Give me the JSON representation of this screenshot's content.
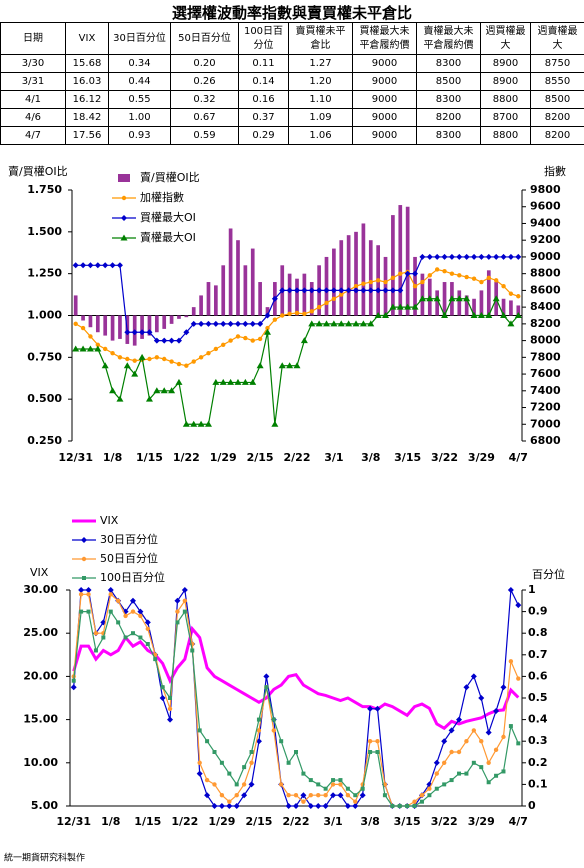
{
  "title": "選擇權波動率指數與賣買權未平倉比",
  "table": {
    "header": [
      "日期",
      "VIX",
      "30日百分位",
      "50日百分位",
      "100日百分位",
      "賣買權未平倉比",
      "買權最大未平倉履約價",
      "賣權最大未平倉履約價",
      "週買權最大",
      "週賣權最大"
    ],
    "rows": [
      [
        "3/30",
        "15.68",
        "0.34",
        "0.20",
        "0.11",
        "1.27",
        "9000",
        "8300",
        "8900",
        "8750"
      ],
      [
        "3/31",
        "16.03",
        "0.44",
        "0.26",
        "0.14",
        "1.20",
        "9000",
        "8500",
        "8900",
        "8550"
      ],
      [
        "4/1",
        "16.12",
        "0.55",
        "0.32",
        "0.16",
        "1.10",
        "9000",
        "8300",
        "8800",
        "8500"
      ],
      [
        "4/6",
        "18.42",
        "1.00",
        "0.67",
        "0.37",
        "1.09",
        "9000",
        "8200",
        "8700",
        "8200"
      ],
      [
        "4/7",
        "17.56",
        "0.93",
        "0.59",
        "0.29",
        "1.06",
        "9000",
        "8300",
        "8800",
        "8200"
      ]
    ]
  },
  "chart_data": [
    {
      "type": "combo",
      "y_label": "賣/買權OI比",
      "y2_label": "指數",
      "legend": "upper left",
      "x_axis_crosses": 1.0,
      "categories": [
        "12/31",
        null,
        null,
        null,
        null,
        "1/8",
        null,
        null,
        null,
        null,
        "1/15",
        null,
        null,
        null,
        null,
        "1/22",
        null,
        null,
        null,
        null,
        "1/29",
        null,
        null,
        null,
        null,
        "2/15",
        null,
        null,
        null,
        null,
        "2/22",
        null,
        null,
        null,
        null,
        "3/1",
        null,
        null,
        null,
        null,
        "3/8",
        null,
        null,
        null,
        null,
        "3/15",
        null,
        null,
        null,
        null,
        "3/22",
        null,
        null,
        null,
        null,
        "3/29",
        null,
        null,
        null,
        null,
        "4/7"
      ],
      "ylim": [
        0.25,
        1.75
      ],
      "yticks": [
        {
          "value": 0.25,
          "label": "0.250"
        },
        {
          "value": 0.5,
          "label": "0.500"
        },
        {
          "value": 0.75,
          "label": "0.750"
        },
        {
          "value": 1.0,
          "label": "1.000"
        },
        {
          "value": 1.25,
          "label": "1.250"
        },
        {
          "value": 1.5,
          "label": "1.500"
        },
        {
          "value": 1.75,
          "label": "1.750"
        }
      ],
      "y2lim": [
        6800,
        9800
      ],
      "y2ticks": [
        6800,
        7000,
        7200,
        7400,
        7600,
        7800,
        8000,
        8200,
        8400,
        8600,
        8800,
        9000,
        9200,
        9400,
        9600,
        9800
      ],
      "series": [
        {
          "name": "賣/買權OI比",
          "kind": "bar",
          "color": "#993399",
          "values": [
            1.12,
            0.97,
            0.93,
            0.9,
            0.88,
            0.85,
            0.86,
            0.83,
            0.82,
            0.86,
            0.88,
            0.9,
            0.92,
            0.95,
            0.98,
            0.99,
            1.05,
            1.12,
            1.2,
            1.18,
            1.3,
            1.52,
            1.45,
            1.3,
            1.4,
            1.2,
            1.05,
            1.2,
            1.3,
            1.25,
            1.22,
            1.25,
            1.2,
            1.3,
            1.35,
            1.4,
            1.45,
            1.48,
            1.5,
            1.55,
            1.45,
            1.42,
            1.35,
            1.6,
            1.66,
            1.65,
            1.35,
            1.25,
            1.22,
            1.15,
            1.2,
            1.2,
            1.15,
            1.12,
            1.1,
            1.15,
            1.27,
            1.2,
            1.1,
            1.09,
            1.06
          ]
        },
        {
          "name": "加權指數",
          "kind": "line",
          "axis": "y2",
          "marker": "circle",
          "color": "#ff9900",
          "values": [
            8200,
            8150,
            8050,
            7950,
            7900,
            7850,
            7800,
            7780,
            7760,
            7770,
            7780,
            7800,
            7780,
            7750,
            7720,
            7700,
            7750,
            7800,
            7850,
            7900,
            7950,
            8000,
            8050,
            8030,
            8000,
            8020,
            8150,
            8250,
            8300,
            8320,
            8330,
            8320,
            8350,
            8400,
            8450,
            8500,
            8550,
            8600,
            8650,
            8680,
            8700,
            8720,
            8700,
            8750,
            8800,
            8820,
            8650,
            8700,
            8780,
            8850,
            8830,
            8800,
            8780,
            8760,
            8740,
            8700,
            8750,
            8720,
            8650,
            8560,
            8530
          ]
        },
        {
          "name": "買權最大OI",
          "kind": "line",
          "axis": "y2",
          "marker": "diamond",
          "color": "#0000cc",
          "values": [
            8900,
            8900,
            8900,
            8900,
            8900,
            8900,
            8900,
            8100,
            8100,
            8100,
            8100,
            8000,
            8000,
            8000,
            8000,
            8100,
            8200,
            8200,
            8200,
            8200,
            8200,
            8200,
            8200,
            8200,
            8200,
            8200,
            8300,
            8500,
            8600,
            8600,
            8600,
            8600,
            8600,
            8600,
            8600,
            8600,
            8600,
            8600,
            8600,
            8600,
            8600,
            8600,
            8600,
            8600,
            8600,
            8800,
            8800,
            9000,
            9000,
            9000,
            9000,
            9000,
            9000,
            9000,
            9000,
            9000,
            9000,
            9000,
            9000,
            9000,
            9000
          ]
        },
        {
          "name": "賣權最大OI",
          "kind": "line",
          "axis": "y2",
          "marker": "triangle",
          "color": "#008000",
          "values": [
            7900,
            7900,
            7900,
            7900,
            7700,
            7400,
            7300,
            7700,
            7600,
            7800,
            7300,
            7400,
            7400,
            7400,
            7500,
            7000,
            7000,
            7000,
            7000,
            7500,
            7500,
            7500,
            7500,
            7500,
            7500,
            7700,
            8100,
            7000,
            7700,
            7700,
            7700,
            8000,
            8200,
            8200,
            8200,
            8200,
            8200,
            8200,
            8200,
            8200,
            8200,
            8300,
            8300,
            8400,
            8400,
            8400,
            8400,
            8500,
            8500,
            8500,
            8300,
            8500,
            8500,
            8500,
            8300,
            8300,
            8300,
            8500,
            8300,
            8200,
            8300
          ]
        }
      ]
    },
    {
      "type": "line",
      "y_label": "VIX",
      "y2_label": "百分位",
      "legend": "top left",
      "categories": [
        "12/31",
        null,
        null,
        null,
        null,
        "1/8",
        null,
        null,
        null,
        null,
        "1/15",
        null,
        null,
        null,
        null,
        "1/22",
        null,
        null,
        null,
        null,
        "1/29",
        null,
        null,
        null,
        null,
        "2/15",
        null,
        null,
        null,
        null,
        "2/22",
        null,
        null,
        null,
        null,
        "3/1",
        null,
        null,
        null,
        null,
        "3/8",
        null,
        null,
        null,
        null,
        "3/15",
        null,
        null,
        null,
        null,
        "3/22",
        null,
        null,
        null,
        null,
        "3/29",
        null,
        null,
        null,
        null,
        "4/7"
      ],
      "ylim": [
        5,
        30
      ],
      "yticks": [
        {
          "value": 5,
          "label": "5.00"
        },
        {
          "value": 10,
          "label": "10.00"
        },
        {
          "value": 15,
          "label": "15.00"
        },
        {
          "value": 20,
          "label": "20.00"
        },
        {
          "value": 25,
          "label": "25.00"
        },
        {
          "value": 30,
          "label": "30.00"
        }
      ],
      "y2lim": [
        0,
        1
      ],
      "y2ticks": [
        0,
        0.1,
        0.2,
        0.3,
        0.4,
        0.5,
        0.6,
        0.7,
        0.8,
        0.9,
        1
      ],
      "series": [
        {
          "name": "VIX",
          "kind": "line",
          "width": 3,
          "color": "#ff00ff",
          "values": [
            20.6,
            23.5,
            23.5,
            22,
            23,
            22.5,
            23,
            24.5,
            23.5,
            24,
            23,
            22.5,
            21.5,
            19.5,
            21,
            22,
            25.5,
            24.5,
            21,
            20,
            19.5,
            19,
            18.5,
            18,
            17.5,
            17,
            17.5,
            18.5,
            19,
            20,
            20.2,
            19,
            18.5,
            18,
            17.8,
            17.5,
            17.2,
            17.5,
            17,
            16.5,
            16.5,
            16.2,
            16.8,
            16.5,
            16,
            15.5,
            16.5,
            16.8,
            16.3,
            14.5,
            14,
            14.8,
            14.5,
            14.8,
            15,
            15.2,
            15.68,
            16.03,
            16.12,
            18.42,
            17.56
          ]
        },
        {
          "name": "30日百分位",
          "kind": "line",
          "axis": "y2",
          "marker": "diamond",
          "color": "#0000cc",
          "values": [
            0.55,
            1,
            1,
            0.8,
            0.85,
            1,
            0.95,
            0.9,
            0.95,
            0.9,
            0.85,
            0.7,
            0.5,
            0.4,
            0.95,
            1,
            0.75,
            0.15,
            0.05,
            0,
            0,
            0,
            0,
            0.05,
            0.1,
            0.3,
            0.6,
            0.4,
            0.1,
            0,
            0,
            0.05,
            0,
            0,
            0,
            0.05,
            0.05,
            0,
            0,
            0.05,
            0.45,
            0.45,
            0.1,
            0,
            0,
            0,
            0,
            0.05,
            0.1,
            0.2,
            0.3,
            0.35,
            0.4,
            0.55,
            0.6,
            0.5,
            0.34,
            0.44,
            0.55,
            1.0,
            0.93
          ]
        },
        {
          "name": "50日百分位",
          "kind": "line",
          "axis": "y2",
          "marker": "circle",
          "color": "#ff9933",
          "values": [
            0.6,
            0.98,
            0.98,
            0.8,
            0.8,
            0.98,
            0.95,
            0.88,
            0.9,
            0.88,
            0.82,
            0.7,
            0.55,
            0.45,
            0.9,
            0.95,
            0.75,
            0.2,
            0.12,
            0.1,
            0.05,
            0.02,
            0.05,
            0.1,
            0.2,
            0.35,
            0.55,
            0.35,
            0.1,
            0.05,
            0.05,
            0.02,
            0.05,
            0.05,
            0.05,
            0.1,
            0.1,
            0.05,
            0.02,
            0.1,
            0.3,
            0.3,
            0.1,
            0,
            0,
            0,
            0.02,
            0.05,
            0.08,
            0.15,
            0.2,
            0.25,
            0.25,
            0.3,
            0.35,
            0.3,
            0.2,
            0.26,
            0.32,
            0.67,
            0.59
          ]
        },
        {
          "name": "100日百分位",
          "kind": "line",
          "axis": "y2",
          "marker": "square",
          "color": "#339966",
          "values": [
            0.58,
            0.9,
            0.9,
            0.72,
            0.78,
            0.9,
            0.85,
            0.78,
            0.8,
            0.78,
            0.75,
            0.68,
            0.55,
            0.5,
            0.85,
            0.9,
            0.72,
            0.35,
            0.3,
            0.25,
            0.2,
            0.15,
            0.1,
            0.18,
            0.25,
            0.4,
            0.55,
            0.4,
            0.3,
            0.2,
            0.25,
            0.15,
            0.12,
            0.1,
            0.08,
            0.12,
            0.12,
            0.08,
            0.05,
            0.08,
            0.25,
            0.25,
            0.05,
            0,
            0,
            0,
            0,
            0.02,
            0.05,
            0.08,
            0.1,
            0.12,
            0.15,
            0.15,
            0.2,
            0.18,
            0.11,
            0.14,
            0.16,
            0.37,
            0.29
          ]
        }
      ]
    }
  ],
  "footer": "統一期貨研究科製作"
}
